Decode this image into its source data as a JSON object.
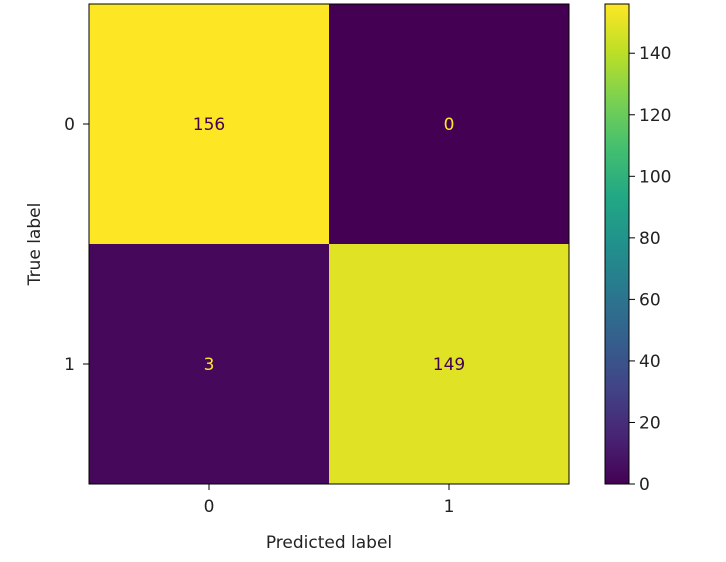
{
  "chart_data": {
    "type": "heatmap",
    "xlabel": "Predicted label",
    "ylabel": "True label",
    "x_categories": [
      "0",
      "1"
    ],
    "y_categories": [
      "0",
      "1"
    ],
    "matrix": [
      [
        156,
        0
      ],
      [
        3,
        149
      ]
    ],
    "cell_labels": [
      [
        "156",
        "0"
      ],
      [
        "3",
        "149"
      ]
    ],
    "colormap": "viridis",
    "colorbar": {
      "vmin": 0,
      "vmax": 156,
      "ticks": [
        0,
        20,
        40,
        60,
        80,
        100,
        120,
        140
      ],
      "tick_labels": [
        "0",
        "20",
        "40",
        "60",
        "80",
        "100",
        "120",
        "140"
      ]
    },
    "colors": {
      "high_text": "#440154",
      "low_text": "#fde725"
    }
  }
}
